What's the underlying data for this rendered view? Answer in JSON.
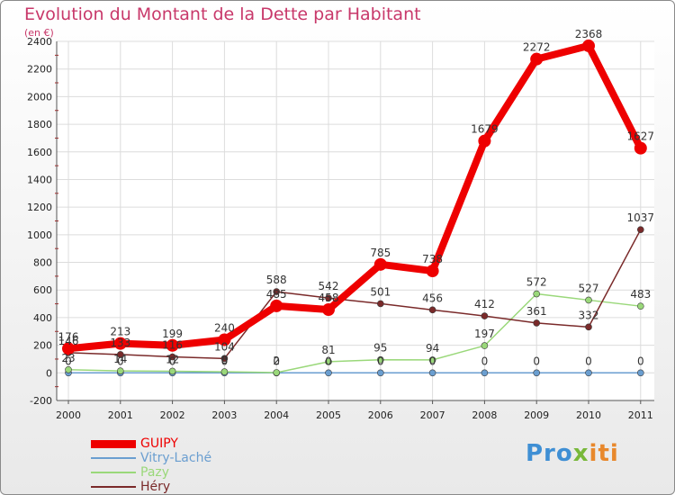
{
  "chart_data": {
    "type": "line",
    "title": "Evolution du Montant de la Dette par Habitant",
    "subtitle": "(en €)",
    "xlabel": "",
    "ylabel": "",
    "categories": [
      "2000",
      "2001",
      "2002",
      "2003",
      "2004",
      "2005",
      "2006",
      "2007",
      "2008",
      "2009",
      "2010",
      "2011"
    ],
    "ylim": [
      -200,
      2400
    ],
    "yticks": [
      "-200",
      "0",
      "200",
      "400",
      "600",
      "800",
      "1000",
      "1200",
      "1400",
      "1600",
      "1800",
      "2000",
      "2200",
      "2400"
    ],
    "grid": true,
    "legend_position": "bottom-left",
    "series": [
      {
        "name": "GUIPY",
        "color": "#ee0000",
        "values": [
          176,
          213,
          199,
          240,
          485,
          458,
          785,
          738,
          1679,
          2272,
          2368,
          1627
        ],
        "labels": [
          "176",
          "213",
          "199",
          "240",
          "485",
          "458",
          "785",
          "738",
          "1679",
          "2272",
          "2368",
          "1627"
        ]
      },
      {
        "name": "Vitry-Laché",
        "color": "#6a9ed0",
        "values": [
          0,
          0,
          0,
          0,
          0,
          0,
          0,
          0,
          0,
          0,
          0,
          0
        ],
        "labels": [
          "0",
          "0",
          "0",
          "0",
          "0",
          "0",
          "0",
          "0",
          "0",
          "0",
          "0",
          "0"
        ]
      },
      {
        "name": "Pazy",
        "color": "#9ad87a",
        "values": [
          23,
          14,
          12,
          8,
          2,
          81,
          95,
          94,
          197,
          572,
          527,
          483
        ],
        "labels": [
          "23",
          "14",
          "12",
          "8",
          "2",
          "81",
          "95",
          "94",
          "197",
          "572",
          "527",
          "483"
        ]
      },
      {
        "name": "Héry",
        "color": "#7a2a2a",
        "values": [
          146,
          133,
          116,
          104,
          588,
          542,
          501,
          456,
          412,
          361,
          332,
          1037
        ],
        "labels": [
          "146",
          "133",
          "116",
          "104",
          "588",
          "542",
          "501",
          "456",
          "412",
          "361",
          "332",
          "1037"
        ]
      }
    ]
  },
  "logo": {
    "part1": "Pro",
    "part2": "x",
    "part3": "iti"
  }
}
